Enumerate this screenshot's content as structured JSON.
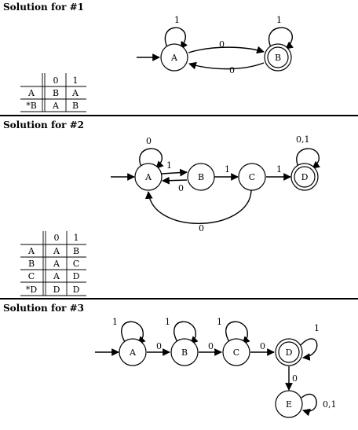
{
  "sections": [
    {
      "heading": "Solution for #1",
      "states": [
        "A",
        "B"
      ],
      "start_state": "A",
      "accept_states": [
        "B"
      ],
      "transitions": [
        {
          "from": "A",
          "to": "A",
          "label": "1"
        },
        {
          "from": "A",
          "to": "B",
          "label": "0"
        },
        {
          "from": "B",
          "to": "A",
          "label": "0"
        },
        {
          "from": "B",
          "to": "B",
          "label": "1"
        }
      ],
      "table": {
        "headers": [
          "0",
          "1"
        ],
        "rows": [
          {
            "state": "A",
            "cells": [
              "B",
              "A"
            ]
          },
          {
            "state": "*B",
            "cells": [
              "A",
              "B"
            ]
          }
        ]
      }
    },
    {
      "heading": "Solution for #2",
      "states": [
        "A",
        "B",
        "C",
        "D"
      ],
      "start_state": "A",
      "accept_states": [
        "D"
      ],
      "transitions": [
        {
          "from": "A",
          "to": "A",
          "label": "0"
        },
        {
          "from": "A",
          "to": "B",
          "label": "1"
        },
        {
          "from": "B",
          "to": "A",
          "label": "0"
        },
        {
          "from": "B",
          "to": "C",
          "label": "1"
        },
        {
          "from": "C",
          "to": "D",
          "label": "1"
        },
        {
          "from": "C",
          "to": "A",
          "label": "0"
        },
        {
          "from": "D",
          "to": "D",
          "label": "0,1"
        }
      ],
      "table": {
        "headers": [
          "0",
          "1"
        ],
        "rows": [
          {
            "state": "A",
            "cells": [
              "A",
              "B"
            ]
          },
          {
            "state": "B",
            "cells": [
              "A",
              "C"
            ]
          },
          {
            "state": "C",
            "cells": [
              "A",
              "D"
            ]
          },
          {
            "state": "*D",
            "cells": [
              "D",
              "D"
            ]
          }
        ]
      }
    },
    {
      "heading": "Solution for #3",
      "states": [
        "A",
        "B",
        "C",
        "D",
        "E"
      ],
      "start_state": "A",
      "accept_states": [
        "D"
      ],
      "transitions": [
        {
          "from": "A",
          "to": "A",
          "label": "1"
        },
        {
          "from": "A",
          "to": "B",
          "label": "0"
        },
        {
          "from": "B",
          "to": "B",
          "label": "1"
        },
        {
          "from": "B",
          "to": "C",
          "label": "0"
        },
        {
          "from": "C",
          "to": "C",
          "label": "1"
        },
        {
          "from": "C",
          "to": "D",
          "label": "0"
        },
        {
          "from": "D",
          "to": "D",
          "label": "1"
        },
        {
          "from": "D",
          "to": "E",
          "label": "0"
        },
        {
          "from": "E",
          "to": "E",
          "label": "0,1"
        }
      ]
    }
  ]
}
